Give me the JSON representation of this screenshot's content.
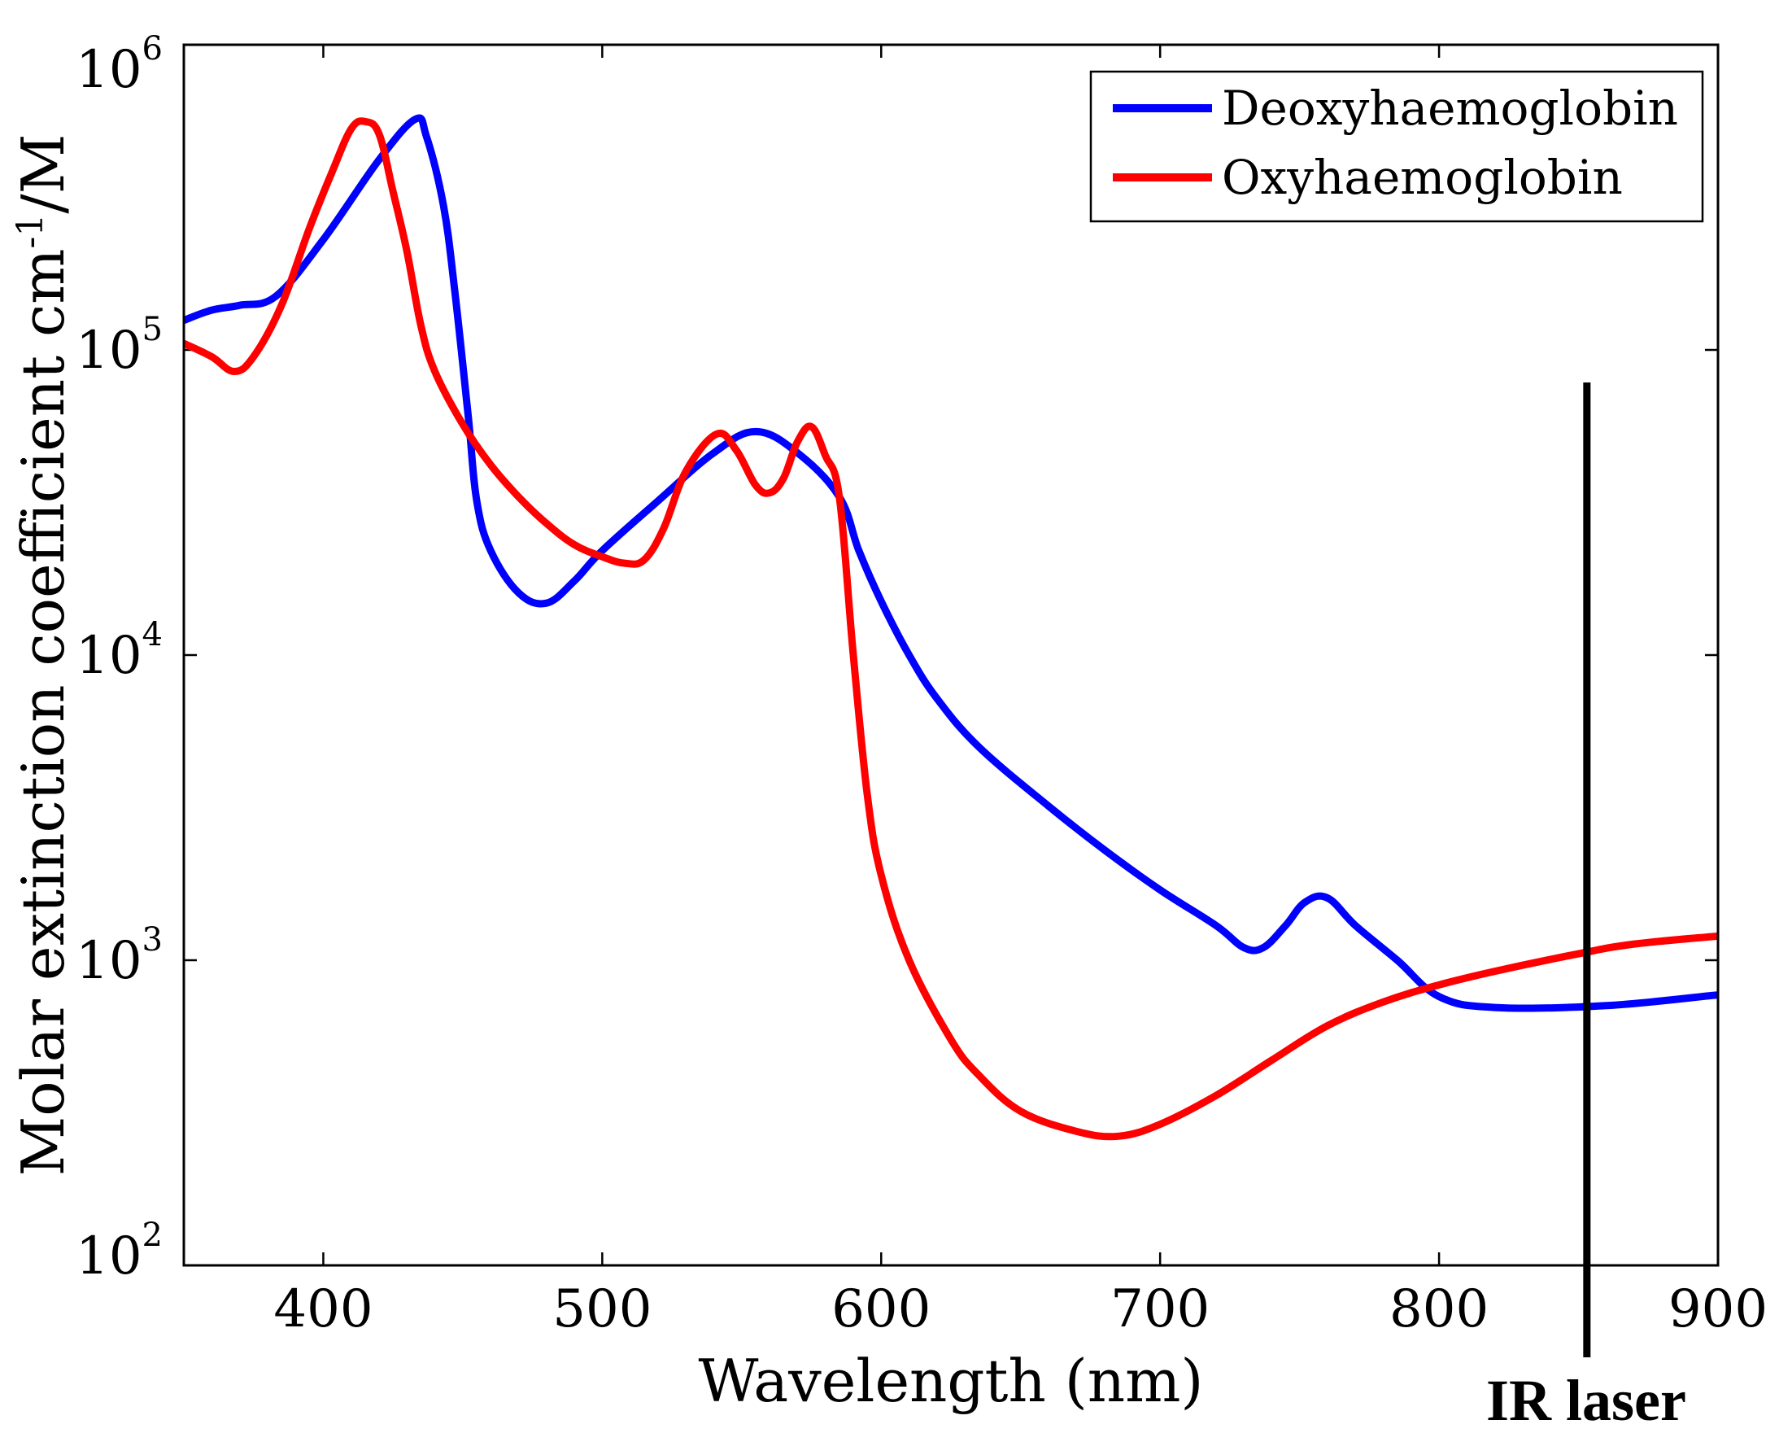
{
  "chart_data": {
    "type": "line",
    "title": "",
    "xlabel": "Wavelength (nm)",
    "ylabel": "Molar extinction coefficient cm",
    "ylabel_exponent": "-1",
    "ylabel_suffix": "/M",
    "xlim": [
      350,
      900
    ],
    "ylim": [
      100,
      1000000
    ],
    "yscale": "log",
    "xticks": [
      400,
      500,
      600,
      700,
      800,
      900
    ],
    "xtick_labels": [
      "400",
      "500",
      "600",
      "700",
      "800",
      "900"
    ],
    "yticks": [
      {
        "value": 100,
        "base": "10",
        "exp": "2"
      },
      {
        "value": 1000,
        "base": "10",
        "exp": "3"
      },
      {
        "value": 10000,
        "base": "10",
        "exp": "4"
      },
      {
        "value": 100000,
        "base": "10",
        "exp": "5"
      },
      {
        "value": 1000000,
        "base": "10",
        "exp": "6"
      }
    ],
    "legend_position": "top-right",
    "series": [
      {
        "name": "Deoxyhaemoglobin",
        "color": "#0000ff",
        "x": [
          350,
          360,
          370,
          383,
          400,
          420,
          433,
          437,
          443,
          447,
          452,
          455,
          460,
          470,
          480,
          490,
          500,
          520,
          540,
          555,
          570,
          585,
          592,
          600,
          610,
          620,
          635,
          660,
          680,
          700,
          720,
          730,
          737,
          745,
          752,
          760,
          770,
          785,
          800,
          820,
          860,
          900
        ],
        "y": [
          125000,
          135000,
          140000,
          150000,
          230000,
          420000,
          570000,
          500000,
          300000,
          160000,
          60000,
          32000,
          22000,
          16000,
          14800,
          17500,
          22000,
          32000,
          46000,
          54000,
          46000,
          33000,
          22000,
          15000,
          10000,
          7200,
          5000,
          3200,
          2300,
          1700,
          1300,
          1100,
          1100,
          1300,
          1550,
          1600,
          1300,
          1000,
          760,
          700,
          710,
          770
        ]
      },
      {
        "name": "Oxyhaemoglobin",
        "color": "#ff0000",
        "x": [
          350,
          360,
          368,
          375,
          385,
          395,
          403,
          410,
          415,
          420,
          425,
          430,
          435,
          440,
          450,
          460,
          470,
          480,
          490,
          500,
          508,
          515,
          522,
          530,
          541,
          548,
          555,
          560,
          565,
          570,
          575,
          580,
          585,
          590,
          595,
          600,
          610,
          625,
          635,
          650,
          670,
          685,
          700,
          720,
          740,
          760,
          780,
          800,
          820,
          850,
          870,
          900
        ],
        "y": [
          105000,
          95000,
          85000,
          95000,
          140000,
          250000,
          380000,
          530000,
          560000,
          510000,
          330000,
          210000,
          120000,
          85000,
          57000,
          42000,
          33000,
          27000,
          23000,
          21000,
          20000,
          20500,
          26000,
          40000,
          53000,
          47000,
          36000,
          34000,
          38000,
          50000,
          56000,
          45000,
          33000,
          10000,
          3500,
          1900,
          1000,
          550,
          420,
          320,
          275,
          265,
          290,
          360,
          470,
          610,
          730,
          830,
          920,
          1050,
          1130,
          1200
        ]
      }
    ],
    "annotations": [
      {
        "type": "vline",
        "x": 853,
        "label": "IR laser"
      }
    ]
  }
}
